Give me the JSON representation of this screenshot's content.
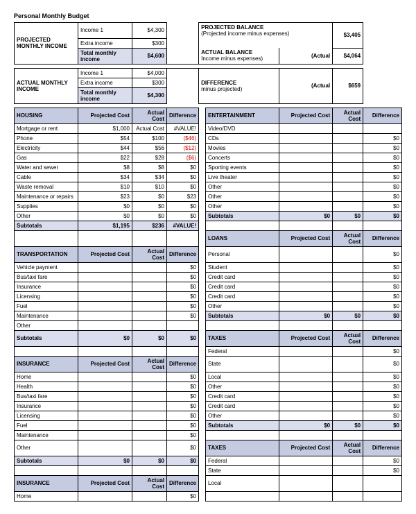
{
  "title": "Personal Monthly Budget",
  "income": {
    "projected_label": "PROJECTED MONTHLY INCOME",
    "actual_label": "ACTUAL MONTHLY INCOME",
    "rows_labels": [
      "Income 1",
      "Extra income",
      "Total monthly income"
    ],
    "projected": [
      "$4,300",
      "$300",
      "$4,600"
    ],
    "actual": [
      "$4,000",
      "$300",
      "$4,300"
    ]
  },
  "balance": {
    "projected_label": "PROJECTED BALANCE",
    "projected_sub": "(Projected income minus expenses)",
    "projected_val": "$3,405",
    "actual_label": "ACTUAL BALANCE",
    "actual_sub": "Income minus expenses)",
    "actual_paren": "(Actual",
    "actual_val": "$4,064",
    "diff_label": "DIFFERENCE",
    "diff_sub": "minus projected)",
    "diff_paren": "(Actual",
    "diff_val": "$659"
  },
  "cols": {
    "pc": "Projected Cost",
    "ac": "Actual Cost",
    "df": "Difference"
  },
  "sections": {
    "housing": {
      "name": "HOUSING",
      "rows": [
        [
          "Mortgage or rent",
          "$1,000",
          "Actual Cost",
          "#VALUE!"
        ],
        [
          "Phone",
          "$54",
          "$100",
          "($46)"
        ],
        [
          "Electricity",
          "$44",
          "$56",
          "($12)"
        ],
        [
          "Gas",
          "$22",
          "$28",
          "($6)"
        ],
        [
          "Water and sewer",
          "$8",
          "$8",
          "$0"
        ],
        [
          "Cable",
          "$34",
          "$34",
          "$0"
        ],
        [
          "Waste removal",
          "$10",
          "$10",
          "$0"
        ],
        [
          "Maintenance or repairs",
          "$23",
          "$0",
          "$23"
        ],
        [
          "Supplies",
          "$0",
          "$0",
          "$0"
        ],
        [
          "Other",
          "$0",
          "$0",
          "$0"
        ]
      ],
      "subtotal": [
        "$1,195",
        "$236",
        "#VALUE!"
      ]
    },
    "entertainment": {
      "name": "ENTERTAINMENT",
      "rows": [
        [
          "Video/DVD",
          "",
          "",
          ""
        ],
        [
          "CDs",
          "",
          "",
          "$0"
        ],
        [
          "Movies",
          "",
          "",
          "$0"
        ],
        [
          "Concerts",
          "",
          "",
          "$0"
        ],
        [
          "Sporting events",
          "",
          "",
          "$0"
        ],
        [
          "Live theater",
          "",
          "",
          "$0"
        ],
        [
          "Other",
          "",
          "",
          "$0"
        ],
        [
          "Other",
          "",
          "",
          "$0"
        ],
        [
          "Other",
          "",
          "",
          "$0"
        ]
      ],
      "subtotal": [
        "$0",
        "$0",
        "$0"
      ]
    },
    "transportation": {
      "name": "TRANSPORTATION",
      "rows": [
        [
          "Vehicle payment",
          "",
          "",
          "$0"
        ],
        [
          "Bus/taxi fare",
          "",
          "",
          "$0"
        ],
        [
          "Insurance",
          "",
          "",
          "$0"
        ],
        [
          "Licensing",
          "",
          "",
          "$0"
        ],
        [
          "Fuel",
          "",
          "",
          "$0"
        ],
        [
          "Maintenance",
          "",
          "",
          "$0"
        ],
        [
          "Other",
          "",
          "",
          ""
        ]
      ],
      "subtotal": [
        "$0",
        "$0",
        "$0"
      ]
    },
    "loans": {
      "name": "LOANS",
      "rows": [
        [
          "Personal",
          "",
          "",
          "$0"
        ],
        [
          "Student",
          "",
          "",
          "$0"
        ],
        [
          "Credit card",
          "",
          "",
          "$0"
        ],
        [
          "Credit card",
          "",
          "",
          "$0"
        ],
        [
          "Credit card",
          "",
          "",
          "$0"
        ],
        [
          "Other",
          "",
          "",
          "$0"
        ]
      ],
      "subtotal": [
        "$0",
        "$0",
        "$0"
      ]
    },
    "insurance": {
      "name": "INSURANCE",
      "rows": [
        [
          "Home",
          "",
          "",
          "$0"
        ],
        [
          "Health",
          "",
          "",
          "$0"
        ],
        [
          "Bus/taxi fare",
          "",
          "",
          "$0"
        ],
        [
          "Insurance",
          "",
          "",
          "$0"
        ],
        [
          "Licensing",
          "",
          "",
          "$0"
        ],
        [
          "Fuel",
          "",
          "",
          "$0"
        ],
        [
          "Maintenance",
          "",
          "",
          "$0"
        ],
        [
          "Other",
          "",
          "",
          "$0"
        ]
      ],
      "subtotal": [
        "$0",
        "$0",
        "$0"
      ]
    },
    "taxes": {
      "name": "TAXES",
      "rows": [
        [
          "Federal",
          "",
          "",
          "$0"
        ],
        [
          "State",
          "",
          "",
          "$0"
        ],
        [
          "Local",
          "",
          "",
          "$0"
        ],
        [
          "Other",
          "",
          "",
          "$0"
        ],
        [
          "Credit card",
          "",
          "",
          "$0"
        ],
        [
          "Credit card",
          "",
          "",
          "$0"
        ],
        [
          "Other",
          "",
          "",
          "$0"
        ]
      ],
      "subtotal": [
        "$0",
        "$0",
        "$0"
      ]
    },
    "taxes2": {
      "name": "TAXES",
      "rows": [
        [
          "Federal",
          "",
          "",
          "$0"
        ],
        [
          "State",
          "",
          "",
          "$0"
        ],
        [
          "Local",
          "",
          "",
          ""
        ]
      ]
    },
    "insurance2": {
      "name": "INSURANCE",
      "rows": [
        [
          "Home",
          "",
          "",
          "$0"
        ]
      ]
    },
    "subtotals_label": "Subtotals"
  },
  "colors": {
    "header_bg": "#c5cbe0",
    "subtotal_bg": "#d9dded",
    "negative": "#d00000"
  }
}
